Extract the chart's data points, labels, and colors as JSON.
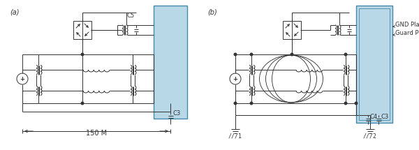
{
  "bg_color": "#ffffff",
  "lc": "#333333",
  "blue_fill": "#b8d8e8",
  "blue_edge": "#4488aa",
  "lw": 0.7,
  "figsize": [
    6.0,
    2.15
  ],
  "dpi": 100,
  "label_a": "(a)",
  "label_b": "(b)",
  "label_c5": "C5",
  "label_c3a": "C3",
  "label_c4b": "C4",
  "label_c3b": "C3",
  "label_150m": "150 M",
  "label_gnd": "GND Plane",
  "label_guard": "Guard Plane",
  "label_t1": "///1",
  "label_t2": "///2"
}
